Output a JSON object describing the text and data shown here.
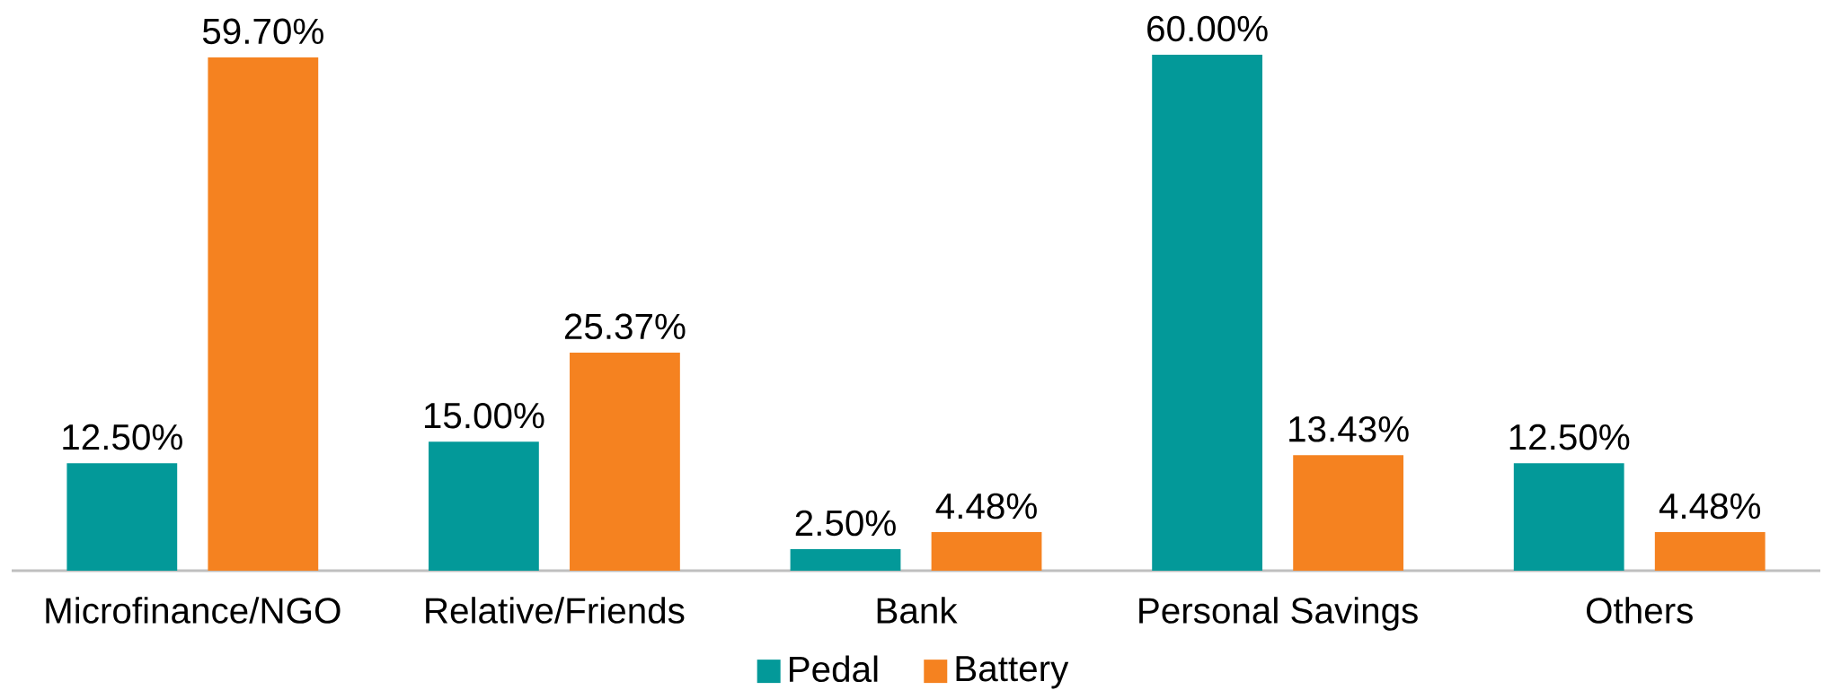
{
  "chart_data": {
    "type": "bar",
    "categories": [
      "Microfinance/NGO",
      "Relative/Friends",
      "Bank",
      "Personal Savings",
      "Others"
    ],
    "series": [
      {
        "name": "Pedal",
        "color": "#039999",
        "values": [
          12.5,
          15.0,
          2.5,
          60.0,
          12.5
        ],
        "value_labels": [
          "12.50%",
          "15.00%",
          "2.50%",
          "60.00%",
          "12.50%"
        ]
      },
      {
        "name": "Battery",
        "color": "#f58220",
        "values": [
          59.7,
          25.37,
          4.48,
          13.43,
          4.48
        ],
        "value_labels": [
          "59.70%",
          "25.37%",
          "4.48%",
          "13.43%",
          "4.48%"
        ]
      }
    ],
    "legend": "bottom"
  }
}
